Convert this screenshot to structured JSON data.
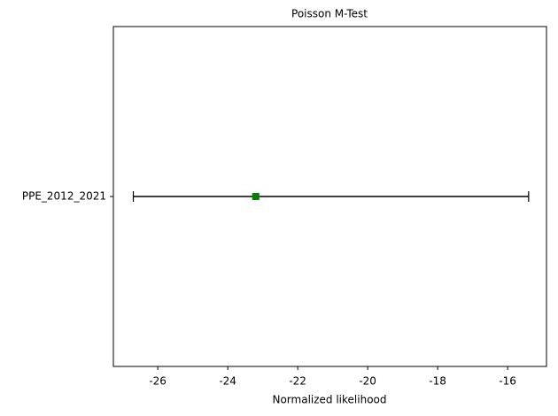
{
  "chart_data": {
    "type": "errorbar",
    "orientation": "horizontal",
    "title": "Poisson M-Test",
    "xlabel": "Normalized likelihood",
    "categories": [
      "PPE_2012_2021"
    ],
    "values": [
      -23.2
    ],
    "error_minus": [
      3.5
    ],
    "error_plus": [
      7.8
    ],
    "color": "#008000",
    "error_color": "#000000",
    "xlim": [
      -27.27,
      -14.89
    ],
    "xticks": [
      -26,
      -24,
      -22,
      -20,
      -18,
      -16
    ],
    "grid": false
  }
}
